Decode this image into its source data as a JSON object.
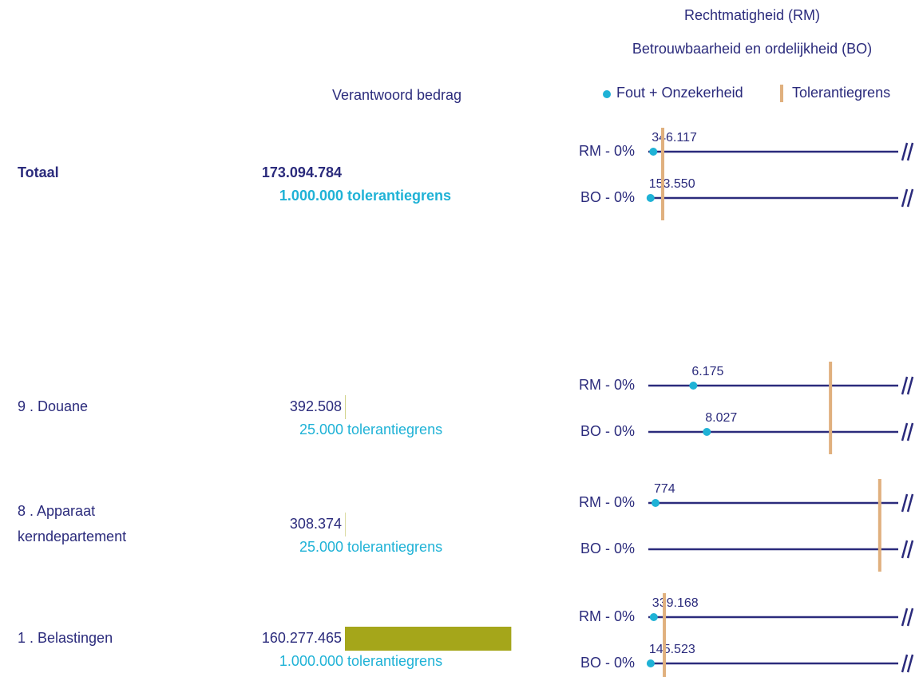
{
  "chart_data": {
    "type": "tolerance-dots",
    "title": [
      "Rechtmatigheid (RM)",
      "Betrouwbaarheid en ordelijkheid (BO)"
    ],
    "amount_header": "Verantwoord bedrag",
    "legend": {
      "dot": {
        "name": "Fout + Onzekerheid",
        "color": "#1fb2d6"
      },
      "limit": {
        "name": "Tolerantiegrens",
        "color": "#e0b07e"
      }
    },
    "line_color": "#2b2b7c",
    "bar_color": "#a5a61a",
    "bar_xlim": [
      0,
      200000000
    ],
    "tolerance_suffix": "tolerantiegrens",
    "rows": [
      {
        "name": [
          "Totaal"
        ],
        "emphasis": true,
        "amount": 173094784,
        "amount_label": "173.094.784",
        "tolerance": 1000000,
        "tolerance_label": "1.000.000",
        "xlim": [
          0,
          17400000
        ],
        "lines": [
          {
            "label": "RM - 0%",
            "value": 346117,
            "value_label": "346.117"
          },
          {
            "label": "BO - 0%",
            "value": 153550,
            "value_label": "153.550"
          }
        ]
      },
      {
        "name": [
          "9 . Douane"
        ],
        "emphasis": false,
        "amount": 392508,
        "amount_label": "392.508",
        "tolerance": 25000,
        "tolerance_label": "25.000",
        "xlim": [
          0,
          34300
        ],
        "lines": [
          {
            "label": "RM - 0%",
            "value": 6175,
            "value_label": "6.175"
          },
          {
            "label": "BO - 0%",
            "value": 8027,
            "value_label": "8.027"
          }
        ]
      },
      {
        "name": [
          "8 . Apparaat",
          "kerndepartement"
        ],
        "emphasis": false,
        "amount": 308374,
        "amount_label": "308.374",
        "tolerance": 25000,
        "tolerance_label": "25.000",
        "xlim": [
          0,
          27000
        ],
        "lines": [
          {
            "label": "RM - 0%",
            "value": 774,
            "value_label": "774"
          },
          {
            "label": "BO - 0%",
            "value": null,
            "value_label": null
          }
        ]
      },
      {
        "name": [
          "1 . Belastingen"
        ],
        "emphasis": false,
        "amount": 160277465,
        "amount_label": "160.277.465",
        "tolerance": 1000000,
        "tolerance_label": "1.000.000",
        "xlim": [
          0,
          15600000
        ],
        "lines": [
          {
            "label": "RM - 0%",
            "value": 339168,
            "value_label": "339.168"
          },
          {
            "label": "BO - 0%",
            "value": 145523,
            "value_label": "145.523"
          }
        ]
      }
    ]
  }
}
